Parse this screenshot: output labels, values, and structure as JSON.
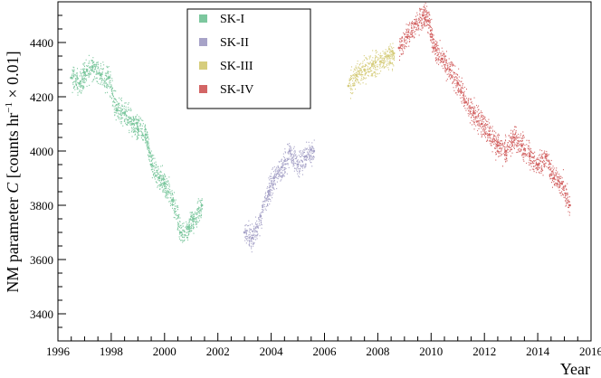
{
  "chart_data": {
    "type": "scatter",
    "title": "",
    "xlabel": "Year",
    "ylabel_main": "NM parameter ",
    "ylabel_var": "C",
    "ylabel_units_open": " [counts hr",
    "ylabel_sup": "−1",
    "ylabel_units_close": " × 0.01]",
    "xlim": [
      1996,
      2016
    ],
    "ylim": [
      3300,
      4550
    ],
    "x_ticks": [
      1996,
      1998,
      2000,
      2002,
      2004,
      2006,
      2008,
      2010,
      2012,
      2014,
      2016
    ],
    "x_tick_labels": [
      "1996",
      "1998",
      "2000",
      "2002",
      "2004",
      "2006",
      "2008",
      "2010",
      "2012",
      "2014",
      "2016"
    ],
    "y_ticks": [
      3400,
      3600,
      3800,
      4000,
      4200,
      4400
    ],
    "y_tick_labels": [
      "3400",
      "3600",
      "3800",
      "4000",
      "4200",
      "4400"
    ],
    "grid": false,
    "legend_position": "top-center",
    "series": [
      {
        "name": "SK-I",
        "color": "#7cc79e",
        "x": [
          1996.5,
          1996.8,
          1997.0,
          1997.3,
          1997.6,
          1997.9,
          1998.2,
          1998.5,
          1998.8,
          1999.0,
          1999.3,
          1999.5,
          1999.8,
          2000.0,
          2000.3,
          2000.6,
          2000.9,
          2001.1,
          2001.4
        ],
        "y": [
          4270,
          4250,
          4290,
          4310,
          4280,
          4270,
          4150,
          4140,
          4100,
          4080,
          4060,
          3950,
          3900,
          3880,
          3820,
          3700,
          3720,
          3750,
          3800
        ]
      },
      {
        "name": "SK-II",
        "color": "#a7a3c8",
        "x": [
          2003.0,
          2003.3,
          2003.6,
          2003.9,
          2004.1,
          2004.4,
          2004.7,
          2005.0,
          2005.3,
          2005.6
        ],
        "y": [
          3700,
          3680,
          3760,
          3850,
          3900,
          3940,
          4000,
          3950,
          3980,
          4000
        ]
      },
      {
        "name": "SK-III",
        "color": "#d6cd7d",
        "x": [
          2006.9,
          2007.2,
          2007.5,
          2007.8,
          2008.1,
          2008.4,
          2008.6
        ],
        "y": [
          4240,
          4280,
          4300,
          4320,
          4330,
          4350,
          4360
        ]
      },
      {
        "name": "SK-IV",
        "color": "#d36565",
        "x": [
          2008.8,
          2009.1,
          2009.4,
          2009.7,
          2009.9,
          2010.1,
          2010.4,
          2010.7,
          2011.0,
          2011.3,
          2011.6,
          2011.9,
          2012.2,
          2012.5,
          2012.8,
          2013.1,
          2013.4,
          2013.7,
          2014.0,
          2014.3,
          2014.6,
          2014.9,
          2015.2
        ],
        "y": [
          4380,
          4420,
          4470,
          4500,
          4480,
          4380,
          4340,
          4300,
          4250,
          4180,
          4140,
          4100,
          4060,
          4020,
          4000,
          4050,
          4020,
          3980,
          3950,
          3980,
          3900,
          3880,
          3800
        ]
      }
    ]
  }
}
